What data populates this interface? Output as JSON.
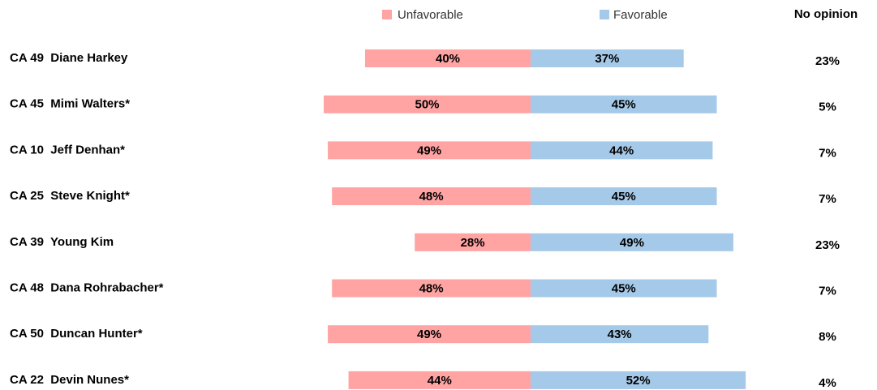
{
  "chart_data": {
    "type": "diverging-bar",
    "categories": [
      "CA 49  Diane Harkey",
      "CA 45  Mimi Walters*",
      "CA 10  Jeff Denhan*",
      "CA 25  Steve Knight*",
      "CA 39  Young Kim",
      "CA 48  Dana Rohrabacher*",
      "CA 50  Duncan Hunter*",
      "CA 22  Devin Nunes*"
    ],
    "series": [
      {
        "name": "Unfavorable",
        "color": "#ffa3a3",
        "values": [
          40,
          50,
          49,
          48,
          28,
          48,
          49,
          44
        ],
        "value_labels": [
          "40%",
          "50%",
          "49%",
          "48%",
          "28%",
          "48%",
          "49%",
          "44%"
        ]
      },
      {
        "name": "Favorable",
        "color": "#a5c9e8",
        "values": [
          37,
          45,
          44,
          45,
          49,
          45,
          43,
          52
        ],
        "value_labels": [
          "37%",
          "45%",
          "44%",
          "45%",
          "49%",
          "45%",
          "43%",
          "52%"
        ]
      },
      {
        "name": "No opinion",
        "values": [
          23,
          5,
          7,
          7,
          23,
          7,
          8,
          4
        ],
        "value_labels": [
          "23%",
          "5%",
          "7%",
          "7%",
          "23%",
          "7%",
          "8%",
          "4%"
        ]
      }
    ]
  }
}
